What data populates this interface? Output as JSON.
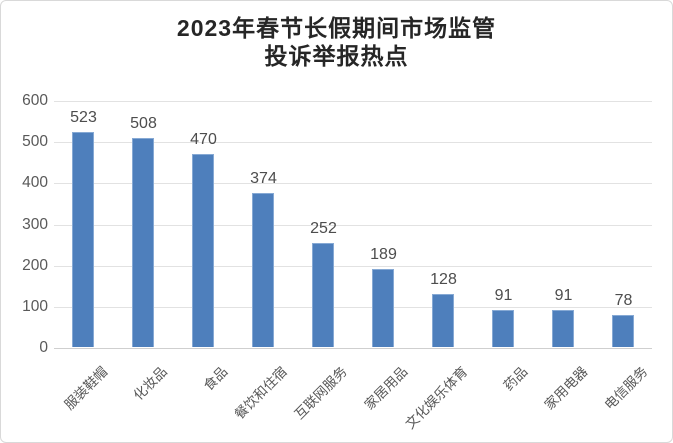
{
  "title": {
    "line1": "2023年春节长假期间市场监管",
    "line2": "投诉举报热点"
  },
  "chart_data": {
    "type": "bar",
    "title": "2023年春节长假期间市场监管 投诉举报热点",
    "categories": [
      "服装鞋帽",
      "化妆品",
      "食品",
      "餐饮和住宿",
      "互联网服务",
      "家居用品",
      "文化娱乐体育",
      "药品",
      "家用电器",
      "电信服务"
    ],
    "values": [
      523,
      508,
      470,
      374,
      252,
      189,
      128,
      91,
      91,
      78
    ],
    "xlabel": "",
    "ylabel": "",
    "ylim": [
      0,
      600
    ],
    "yticks": [
      0,
      100,
      200,
      300,
      400,
      500,
      600
    ],
    "grid": true,
    "legend": false,
    "data_labels": true,
    "bar_color": "#4e7fbc",
    "bar_edge_color": "#86a9d4",
    "gridline_color": "#e2e2e2",
    "tick_label_color": "#595959",
    "data_label_color": "#4d4d4d",
    "title_color": "#262626"
  }
}
